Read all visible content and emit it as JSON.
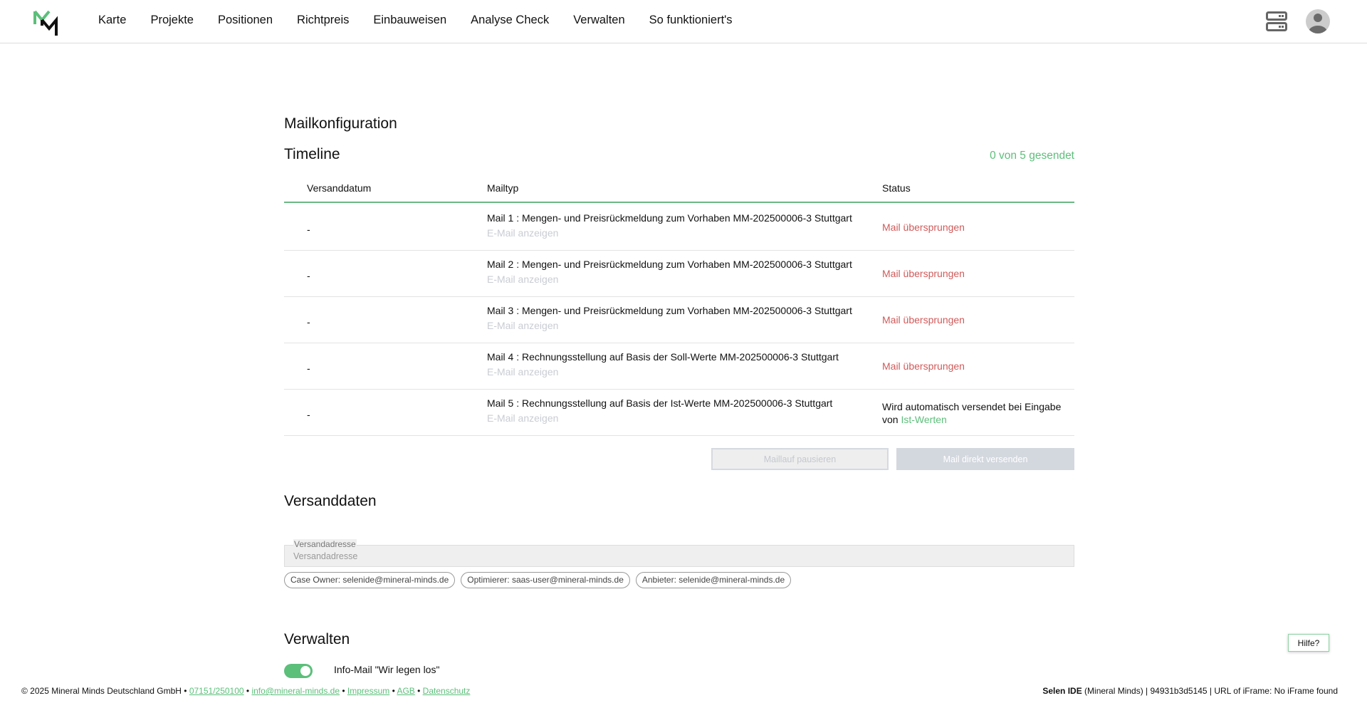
{
  "nav": {
    "items": [
      "Karte",
      "Projekte",
      "Positionen",
      "Richtpreis",
      "Einbauweisen",
      "Analyse Check",
      "Verwalten",
      "So funktioniert's"
    ]
  },
  "colors": {
    "accent": "#5cbf7a",
    "skipped": "#d05a5a"
  },
  "page": {
    "title": "Mailkonfiguration"
  },
  "timeline": {
    "title": "Timeline",
    "sent_count": "0 von 5 gesendet",
    "headers": [
      "Versanddatum",
      "Mailtyp",
      "Status"
    ],
    "rows": [
      {
        "date": "-",
        "type": "Mail 1 : Mengen- und Preisrückmeldung zum Vorhaben MM-202500006-3 Stuttgart",
        "link": "E-Mail anzeigen",
        "status": "Mail übersprungen"
      },
      {
        "date": "-",
        "type": "Mail 2 : Mengen- und Preisrückmeldung zum Vorhaben MM-202500006-3 Stuttgart",
        "link": "E-Mail anzeigen",
        "status": "Mail übersprungen"
      },
      {
        "date": "-",
        "type": "Mail 3 : Mengen- und Preisrückmeldung zum Vorhaben MM-202500006-3 Stuttgart",
        "link": "E-Mail anzeigen",
        "status": "Mail übersprungen"
      },
      {
        "date": "-",
        "type": "Mail 4 : Rechnungsstellung auf Basis der Soll-Werte MM-202500006-3 Stuttgart",
        "link": "E-Mail anzeigen",
        "status": "Mail übersprungen"
      },
      {
        "date": "-",
        "type": "Mail 5 : Rechnungsstellung auf Basis der Ist-Werte MM-202500006-3 Stuttgart",
        "link": "E-Mail anzeigen",
        "status_prefix": "Wird automatisch versendet bei Eingabe von ",
        "status_link": "Ist-Werten"
      }
    ],
    "pause_button": "Maillauf pausieren",
    "send_button": "Mail direkt versenden"
  },
  "versanddaten": {
    "title": "Versanddaten",
    "field_label": "Versandadresse",
    "field_placeholder": "Versandadresse",
    "field_value": "",
    "chips": [
      "Case Owner: selenide@mineral-minds.de",
      "Optimierer: saas-user@mineral-minds.de",
      "Anbieter: selenide@mineral-minds.de"
    ]
  },
  "verwalten": {
    "title": "Verwalten",
    "toggle_label": "Info-Mail \"Wir legen los\"",
    "toggle_on": true
  },
  "footer": {
    "copyright": "© 2025 Mineral Minds Deutschland GmbH",
    "sep": " • ",
    "phone": "07151/250100",
    "email": "info@mineral-minds.de",
    "impressum": "Impressum",
    "agb": "AGB",
    "datenschutz": "Datenschutz",
    "right_bold": "Selen IDE",
    "right_rest": " (Mineral Minds) | 94931b3d5145 | URL of iFrame: No iFrame found"
  },
  "help": "Hilfe?"
}
